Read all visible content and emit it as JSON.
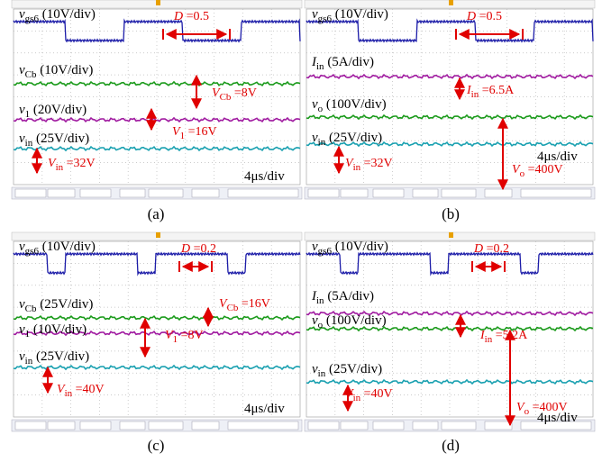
{
  "panels": [
    {
      "caption": "(a)",
      "time_scale": "4μs/div",
      "labels": [
        {
          "main": "v",
          "sub": "gs6",
          "rest": " (10V/div)"
        },
        {
          "main": "v",
          "sub": "Cb",
          "rest": " (10V/div)"
        },
        {
          "main": "v",
          "sub": "1",
          "rest": " (20V/div)"
        },
        {
          "main": "v",
          "sub": "in",
          "rest": " (25V/div)"
        }
      ],
      "annotations": [
        {
          "main": "D",
          "sub": "",
          "rest": " =0.5"
        },
        {
          "main": "V",
          "sub": "Cb",
          "rest": " =8V"
        },
        {
          "main": "V",
          "sub": "1",
          "rest": " =16V"
        },
        {
          "main": "V",
          "sub": "in",
          "rest": " =32V"
        }
      ]
    },
    {
      "caption": "(b)",
      "time_scale": "4μs/div",
      "labels": [
        {
          "main": "v",
          "sub": "gs6",
          "rest": " (10V/div)"
        },
        {
          "main": "I",
          "sub": "in",
          "rest": " (5A/div)"
        },
        {
          "main": "v",
          "sub": "o",
          "rest": "  (100V/div)"
        },
        {
          "main": "v",
          "sub": "in",
          "rest": " (25V/div)"
        }
      ],
      "annotations": [
        {
          "main": "D",
          "sub": "",
          "rest": " =0.5"
        },
        {
          "main": "I",
          "sub": "in",
          "rest": " =6.5A"
        },
        {
          "main": "V",
          "sub": "o",
          "rest": " =400V"
        },
        {
          "main": "V",
          "sub": "in",
          "rest": " =32V"
        }
      ]
    },
    {
      "caption": "(c)",
      "time_scale": "4μs/div",
      "labels": [
        {
          "main": "v",
          "sub": "gs6",
          "rest": " (10V/div)"
        },
        {
          "main": "v",
          "sub": "Cb",
          "rest": " (25V/div)"
        },
        {
          "main": "v",
          "sub": "1",
          "rest": " (10V/div)"
        },
        {
          "main": "v",
          "sub": "in",
          "rest": " (25V/div)"
        }
      ],
      "annotations": [
        {
          "main": "D",
          "sub": "",
          "rest": " =0.2"
        },
        {
          "main": "V",
          "sub": "Cb",
          "rest": " =16V"
        },
        {
          "main": "V",
          "sub": "1",
          "rest": " =8V"
        },
        {
          "main": "V",
          "sub": "in",
          "rest": " =40V"
        }
      ]
    },
    {
      "caption": "(d)",
      "time_scale": "4μs/div",
      "labels": [
        {
          "main": "v",
          "sub": "gs6",
          "rest": " (10V/div)"
        },
        {
          "main": "I",
          "sub": "in",
          "rest": " (5A/div)"
        },
        {
          "main": "v",
          "sub": "o",
          "rest": "  (100V/div)"
        },
        {
          "main": "v",
          "sub": "in",
          "rest": " (25V/div)"
        }
      ],
      "annotations": [
        {
          "main": "D",
          "sub": "",
          "rest": " =0.2"
        },
        {
          "main": "I",
          "sub": "in",
          "rest": " =5.2A"
        },
        {
          "main": "V",
          "sub": "o",
          "rest": " =400V"
        },
        {
          "main": "V",
          "sub": "in",
          "rest": " =40V"
        }
      ]
    }
  ]
}
